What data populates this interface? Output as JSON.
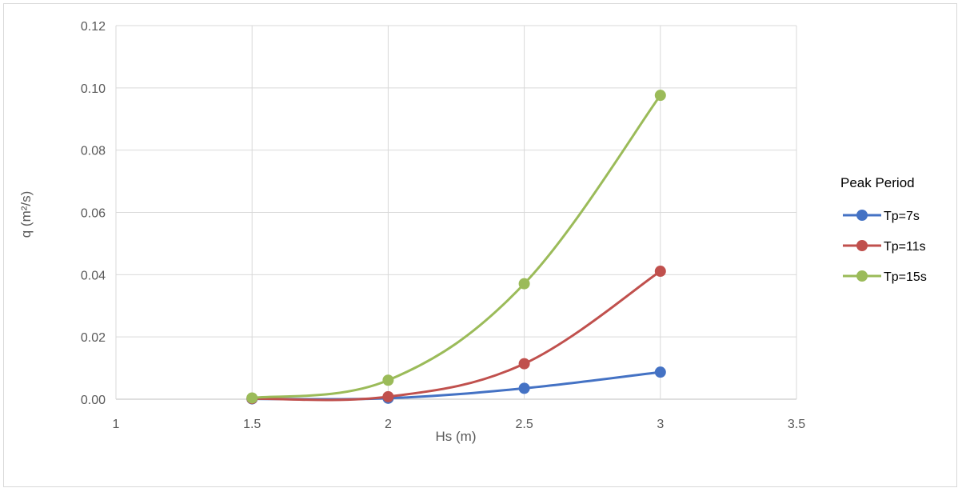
{
  "chart_data": {
    "type": "line",
    "xlabel": "Hs (m)",
    "ylabel": "q (m²/s)",
    "xlim": [
      1,
      3.5
    ],
    "ylim": [
      0,
      0.12
    ],
    "xticks": [
      "1",
      "1.5",
      "2",
      "2.5",
      "3",
      "3.5"
    ],
    "yticks": [
      "0.00",
      "0.02",
      "0.04",
      "0.06",
      "0.08",
      "0.10",
      "0.12"
    ],
    "grid": true,
    "legend": {
      "title": "Peak Period",
      "position": "right"
    },
    "x": [
      1.5,
      2,
      2.5,
      3
    ],
    "series": [
      {
        "name": "Tp=7s",
        "color": "#4472c4",
        "values": [
          0.0001,
          0.0003,
          0.0035,
          0.0087
        ]
      },
      {
        "name": "Tp=11s",
        "color": "#c0504d",
        "values": [
          0.0002,
          0.0008,
          0.0114,
          0.0411
        ]
      },
      {
        "name": "Tp=15s",
        "color": "#9bbb59",
        "values": [
          0.0004,
          0.0061,
          0.0371,
          0.0976
        ]
      }
    ]
  }
}
